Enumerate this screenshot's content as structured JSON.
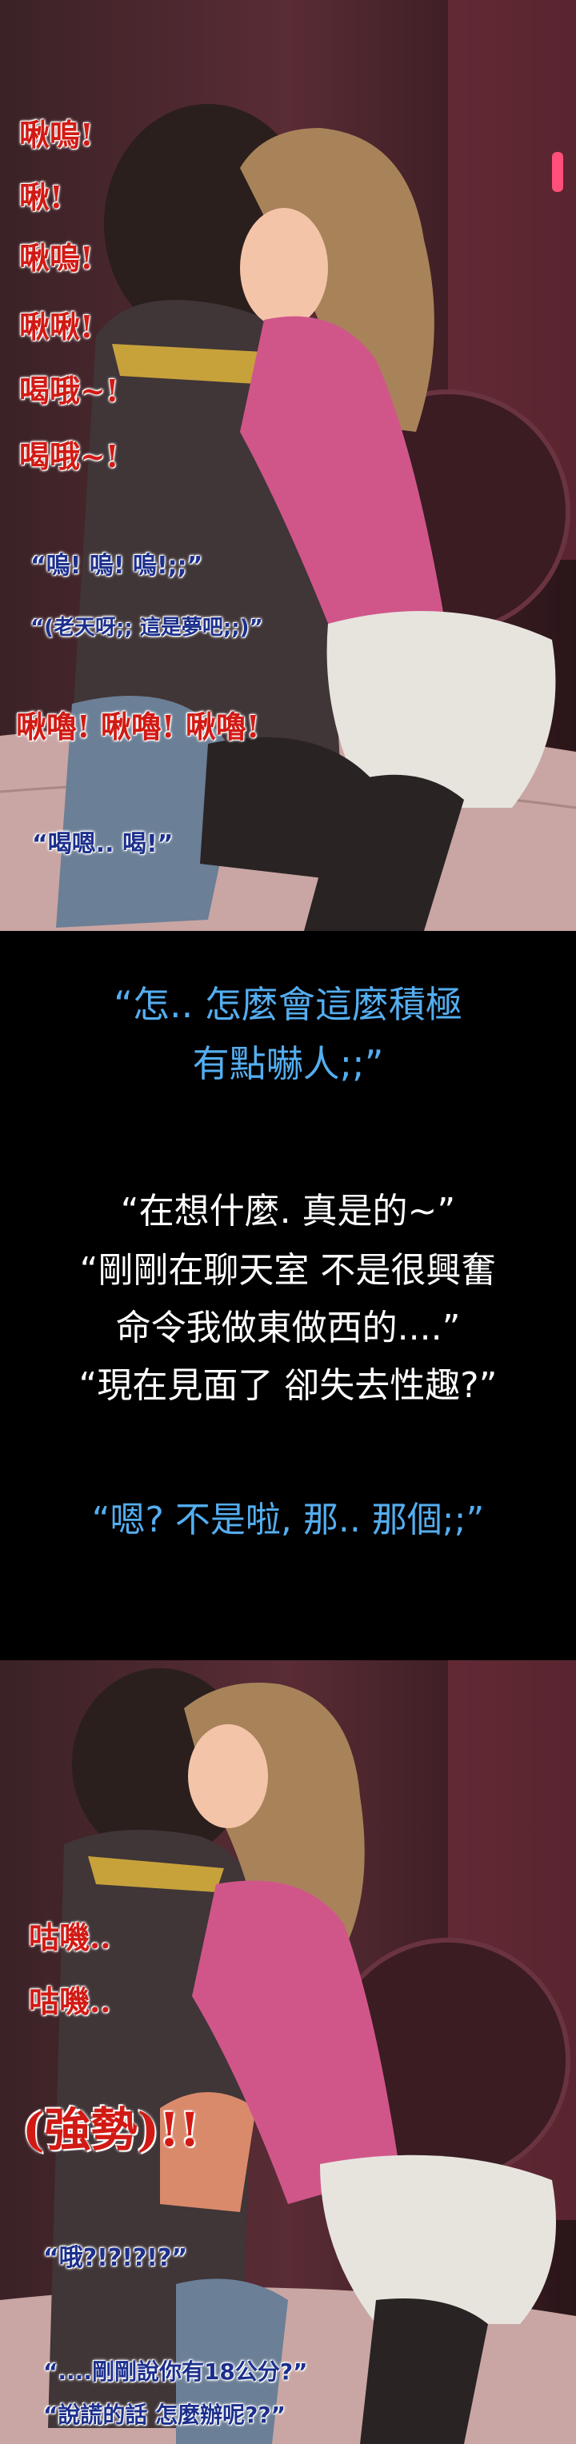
{
  "panel1": {
    "sfx": [
      "啾嗚!",
      "啾!",
      "啾嗚!",
      "啾啾!",
      "喝哦~!",
      "喝哦~!"
    ],
    "dialog": [
      "“嗚! 嗚! 嗚!;;”",
      "“(老天呀;; 這是夢吧;;)”"
    ],
    "sfx2": "啾嚕! 啾嚕! 啾嚕!",
    "dialog2": "“喝嗯.. 喝!”"
  },
  "panel2": {
    "blue_lines": [
      "“怎.. 怎麼會這麼積極",
      "有點嚇人;;”"
    ],
    "white_lines": [
      "“在想什麼. 真是的~”",
      "“剛剛在聊天室 不是很興奮",
      "命令我做東做西的....”",
      "“現在見面了 卻失去性趣?”"
    ],
    "blue_reply": "“嗯? 不是啦, 那.. 那個;;”"
  },
  "panel3": {
    "sfx": [
      "咕嘰..",
      "咕嘰.."
    ],
    "big_sfx": "(強勢)!!",
    "dialog": [
      "“哦?!?!?!?”",
      "“....剛剛說你有18公分?”",
      "“說謊的話 怎麼辦呢??”"
    ]
  }
}
